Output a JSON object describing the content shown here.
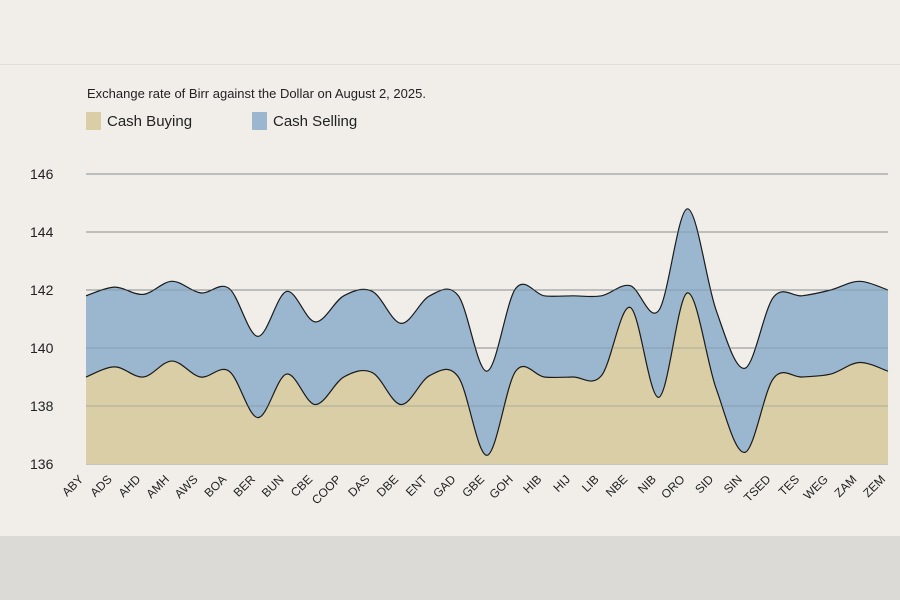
{
  "chart_data": {
    "type": "area",
    "title": "Exchange rate of Birr against the Dollar on August 2, 2025.",
    "xlabel": "",
    "ylabel": "",
    "ylim": [
      136,
      146
    ],
    "yticks": [
      136,
      138,
      140,
      142,
      144,
      146
    ],
    "grid": true,
    "legend_position": "top-left",
    "categories": [
      "ABY",
      "ADS",
      "AHD",
      "AMH",
      "AWS",
      "BOA",
      "BER",
      "BUN",
      "CBE",
      "COOP",
      "DAS",
      "DBE",
      "ENT",
      "GAD",
      "GBE",
      "GOH",
      "HIB",
      "HIJ",
      "LIB",
      "NBE",
      "NIB",
      "ORO",
      "SID",
      "SIN",
      "TSED",
      "TES",
      "WEG",
      "ZAM",
      "ZEM"
    ],
    "series": [
      {
        "name": "Cash Selling",
        "color": "#9ab7cf",
        "values": [
          141.8,
          142.1,
          141.85,
          142.3,
          141.9,
          142.05,
          140.4,
          141.95,
          140.9,
          141.8,
          141.95,
          140.85,
          141.8,
          141.8,
          139.2,
          142.05,
          141.8,
          141.8,
          141.8,
          142.15,
          141.3,
          144.8,
          141.3,
          139.3,
          141.75,
          141.8,
          142.0,
          142.3,
          142.0
        ]
      },
      {
        "name": "Cash Buying",
        "color": "#d9cea5",
        "values": [
          139.0,
          139.35,
          139.0,
          139.55,
          139.0,
          139.2,
          137.6,
          139.1,
          138.05,
          139.0,
          139.15,
          138.05,
          139.05,
          139.0,
          136.3,
          139.2,
          139.0,
          139.0,
          139.05,
          141.4,
          138.3,
          141.9,
          138.6,
          136.4,
          138.95,
          139.0,
          139.1,
          139.5,
          139.2
        ]
      }
    ]
  }
}
